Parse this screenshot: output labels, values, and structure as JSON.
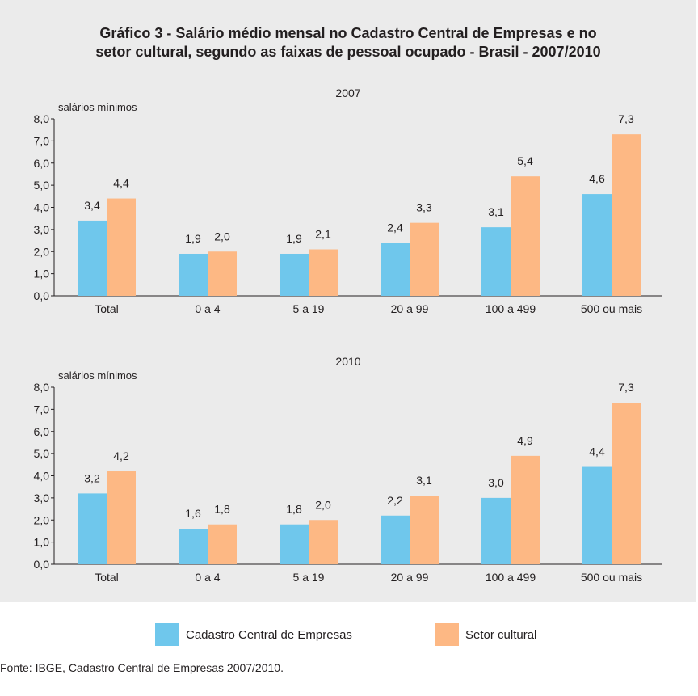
{
  "title_line1": "Gráfico 3 - Salário médio mensal no Cadastro Central de Empresas e no",
  "title_line2": "setor cultural, segundo as faixas de pessoal ocupado - Brasil - 2007/2010",
  "source": "Fonte: IBGE, Cadastro Central de Empresas 2007/2010.",
  "colors": {
    "panel": "#ebebeb",
    "cadastro": "#6fc7ec",
    "cultural": "#fdb884"
  },
  "legend": [
    {
      "label": "Cadastro Central de Empresas",
      "color": "#6fc7ec"
    },
    {
      "label": "Setor cultural",
      "color": "#fdb884"
    }
  ],
  "chart_data": [
    {
      "type": "bar",
      "title": "2007",
      "ylabel": "salários mínimos",
      "xlabel": "",
      "ylim": [
        0,
        8
      ],
      "yticks": [
        "0,0",
        "1,0",
        "2,0",
        "3,0",
        "4,0",
        "5,0",
        "6,0",
        "7,0",
        "8,0"
      ],
      "categories": [
        "Total",
        "0 a 4",
        "5 a 19",
        "20 a 99",
        "100 a 499",
        "500 ou mais"
      ],
      "grid": false,
      "series": [
        {
          "name": "Cadastro Central de Empresas",
          "values": [
            3.4,
            1.9,
            1.9,
            2.4,
            3.1,
            4.6
          ],
          "labels": [
            "3,4",
            "1,9",
            "1,9",
            "2,4",
            "3,1",
            "4,6"
          ]
        },
        {
          "name": "Setor cultural",
          "values": [
            4.4,
            2.0,
            2.1,
            3.3,
            5.4,
            7.3
          ],
          "labels": [
            "4,4",
            "2,0",
            "2,1",
            "3,3",
            "5,4",
            "7,3"
          ]
        }
      ]
    },
    {
      "type": "bar",
      "title": "2010",
      "ylabel": "salários mínimos",
      "xlabel": "",
      "ylim": [
        0,
        8
      ],
      "yticks": [
        "0,0",
        "1,0",
        "2,0",
        "3,0",
        "4,0",
        "5,0",
        "6,0",
        "7,0",
        "8,0"
      ],
      "categories": [
        "Total",
        "0 a 4",
        "5 a 19",
        "20 a 99",
        "100 a 499",
        "500 ou mais"
      ],
      "grid": false,
      "series": [
        {
          "name": "Cadastro Central de Empresas",
          "values": [
            3.2,
            1.6,
            1.8,
            2.2,
            3.0,
            4.4
          ],
          "labels": [
            "3,2",
            "1,6",
            "1,8",
            "2,2",
            "3,0",
            "4,4"
          ]
        },
        {
          "name": "Setor cultural",
          "values": [
            4.2,
            1.8,
            2.0,
            3.1,
            4.9,
            7.3
          ],
          "labels": [
            "4,2",
            "1,8",
            "2,0",
            "3,1",
            "4,9",
            "7,3"
          ]
        }
      ]
    }
  ]
}
